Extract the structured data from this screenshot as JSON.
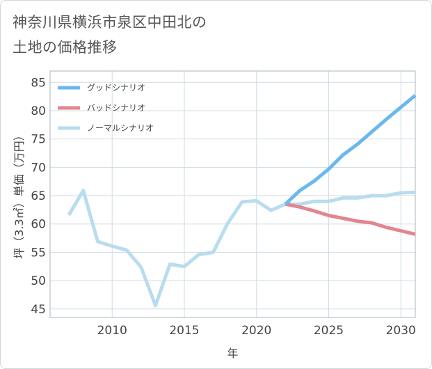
{
  "title": {
    "line1": "神奈川県横浜市泉区中田北の",
    "line2": "土地の価格推移"
  },
  "chart_data": {
    "type": "line",
    "xlabel": "年",
    "ylabel": "坪（3.3㎡）単価（万円）",
    "xlim": [
      2005.7,
      2031
    ],
    "ylim": [
      43.5,
      87
    ],
    "xticks": [
      2010,
      2015,
      2020,
      2025,
      2030
    ],
    "yticks": [
      45,
      50,
      55,
      60,
      65,
      70,
      75,
      80,
      85
    ],
    "grid": true,
    "legend_position": "top-left",
    "series": [
      {
        "name": "グッドシナリオ",
        "color": "#6bb8ee",
        "x": [
          2022,
          2023,
          2024,
          2025,
          2026,
          2027,
          2028,
          2029,
          2030,
          2031
        ],
        "y": [
          63.5,
          65.9,
          67.6,
          69.7,
          72.2,
          74.1,
          76.3,
          78.5,
          80.6,
          82.7
        ]
      },
      {
        "name": "バッドシナリオ",
        "color": "#e0868f",
        "x": [
          2022,
          2023,
          2024,
          2025,
          2026,
          2027,
          2028,
          2029,
          2030,
          2031
        ],
        "y": [
          63.5,
          63.0,
          62.3,
          61.5,
          61.0,
          60.5,
          60.2,
          59.4,
          58.8,
          58.2
        ]
      },
      {
        "name": "ノーマルシナリオ",
        "color": "#b9dcee",
        "x": [
          2007,
          2008,
          2009,
          2010,
          2011,
          2012,
          2013,
          2014,
          2015,
          2016,
          2017,
          2018,
          2019,
          2020,
          2021,
          2022,
          2023,
          2024,
          2025,
          2026,
          2027,
          2028,
          2029,
          2030,
          2031
        ],
        "y": [
          61.6,
          65.9,
          56.9,
          56.1,
          55.4,
          52.4,
          45.6,
          52.9,
          52.5,
          54.6,
          55.0,
          60.1,
          63.9,
          64.1,
          62.4,
          63.5,
          63.5,
          64.0,
          64.0,
          64.6,
          64.6,
          65.0,
          65.0,
          65.5,
          65.6
        ]
      }
    ]
  }
}
